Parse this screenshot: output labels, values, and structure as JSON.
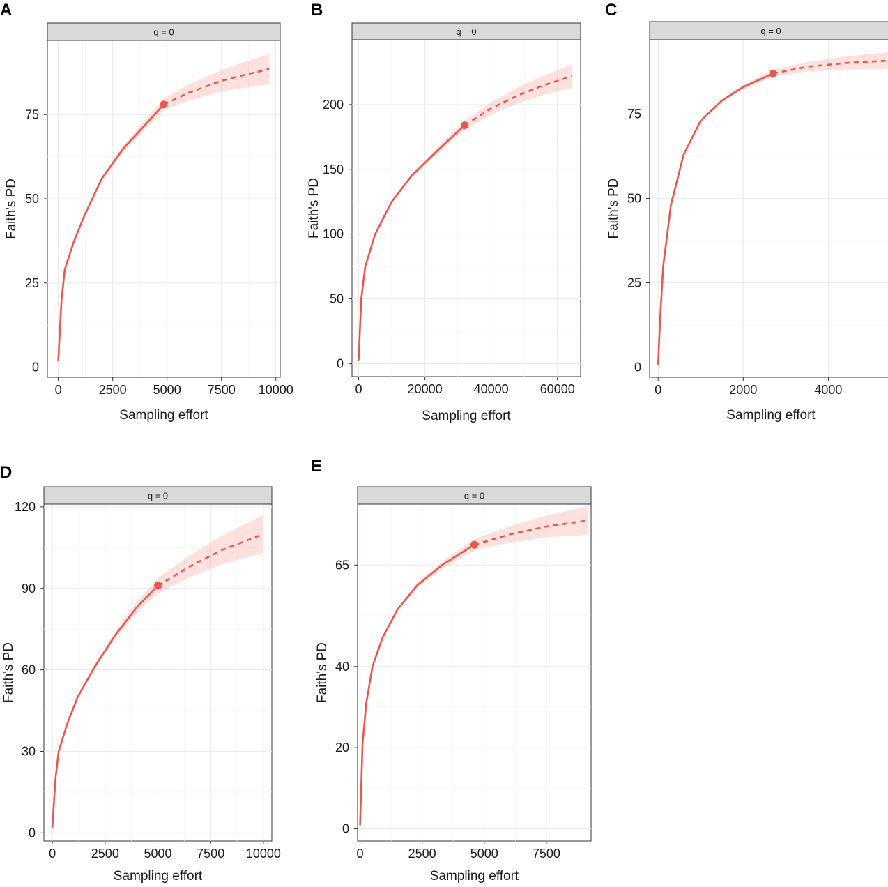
{
  "figure": {
    "series_color": "#e8574d",
    "ribbon_color": "#f8766d",
    "strip_color": "#d9d9d9"
  },
  "chart_data": [
    {
      "panel": "A",
      "type": "line",
      "strip_label": "q = 0",
      "xlabel": "Sampling effort",
      "ylabel": "Faith's PD",
      "xlim": [
        -500,
        10200
      ],
      "ylim": [
        -3,
        97
      ],
      "xticks": [
        0,
        2500,
        5000,
        7500,
        10000
      ],
      "xtick_labels": [
        "0",
        "2500",
        "5000",
        "7500",
        "10000"
      ],
      "yticks": [
        0,
        25,
        50,
        75
      ],
      "ytick_labels": [
        "0",
        "25",
        "50",
        "75"
      ],
      "reference_sample": {
        "x": 4850,
        "y": 78
      },
      "x_max": 9700,
      "curve": {
        "x": [
          0,
          150,
          300,
          700,
          1200,
          2000,
          3000,
          4000,
          4850,
          6000,
          7500,
          8500,
          9700
        ],
        "y": [
          2,
          20,
          29,
          37,
          45,
          56,
          65,
          72,
          78,
          81.5,
          85,
          86.7,
          88.5
        ]
      },
      "ci_halfwidth_at_max": 4.5
    },
    {
      "panel": "B",
      "type": "line",
      "strip_label": "q = 0",
      "xlabel": "Sampling effort",
      "ylabel": "Faith's PD",
      "xlim": [
        -2000,
        67000
      ],
      "ylim": [
        -10,
        250
      ],
      "xticks": [
        0,
        20000,
        40000,
        60000
      ],
      "xtick_labels": [
        "0",
        "20000",
        "40000",
        "60000"
      ],
      "yticks": [
        0,
        50,
        100,
        150,
        200
      ],
      "ytick_labels": [
        "0",
        "50",
        "100",
        "150",
        "200"
      ],
      "reference_sample": {
        "x": 32000,
        "y": 184
      },
      "x_max": 64500,
      "curve": {
        "x": [
          0,
          800,
          2000,
          5000,
          10000,
          16000,
          24000,
          32000,
          40000,
          48000,
          56000,
          64500
        ],
        "y": [
          3,
          50,
          75,
          100,
          125,
          145,
          165,
          184,
          197,
          207,
          215,
          222
        ]
      },
      "ci_halfwidth_at_max": 9
    },
    {
      "panel": "C",
      "type": "line",
      "strip_label": "q = 0",
      "xlabel": "Sampling effort",
      "ylabel": "Faith's PD",
      "xlim": [
        -200,
        5500
      ],
      "ylim": [
        -3,
        97
      ],
      "xticks": [
        0,
        2000,
        4000
      ],
      "xtick_labels": [
        "0",
        "2000",
        "4000"
      ],
      "yticks": [
        0,
        25,
        50,
        75
      ],
      "ytick_labels": [
        "0",
        "25",
        "50",
        "75"
      ],
      "reference_sample": {
        "x": 2700,
        "y": 87
      },
      "x_max": 5400,
      "curve": {
        "x": [
          0,
          50,
          120,
          300,
          600,
          1000,
          1500,
          2000,
          2700,
          3500,
          4500,
          5400
        ],
        "y": [
          1,
          15,
          30,
          48,
          63,
          73,
          79,
          83,
          87,
          89,
          90.2,
          90.8
        ]
      },
      "ci_halfwidth_at_max": 2.5
    },
    {
      "panel": "D",
      "type": "line",
      "strip_label": "q = 0",
      "xlabel": "Sampling effort",
      "ylabel": "Faith's PD",
      "xlim": [
        -400,
        10400
      ],
      "ylim": [
        -3,
        121
      ],
      "xticks": [
        0,
        2500,
        5000,
        7500,
        10000
      ],
      "xtick_labels": [
        "0",
        "2500",
        "5000",
        "7500",
        "10000"
      ],
      "yticks": [
        0,
        30,
        60,
        90,
        120
      ],
      "ytick_labels": [
        "0",
        "30",
        "60",
        "90",
        "120"
      ],
      "reference_sample": {
        "x": 5000,
        "y": 91
      },
      "x_max": 10000,
      "curve": {
        "x": [
          0,
          150,
          300,
          700,
          1200,
          2000,
          3000,
          4000,
          5000,
          6500,
          8000,
          9000,
          10000
        ],
        "y": [
          2,
          20,
          30,
          40,
          50,
          61,
          73,
          83,
          91,
          98,
          104,
          107,
          110
        ],
        "y_dummy": null
      },
      "ci_halfwidth_at_max": 7
    },
    {
      "panel": "E",
      "type": "line",
      "strip_label": "q = 0",
      "xlabel": "Sampling effort",
      "ylabel": "Faith's PD",
      "xlim": [
        -100,
        9300
      ],
      "ylim": [
        -3,
        80
      ],
      "xticks": [
        0,
        2500,
        5000,
        7500
      ],
      "xtick_labels": [
        "0",
        "2500",
        "5000",
        "7500"
      ],
      "yticks": [
        0,
        20,
        40,
        65
      ],
      "ytick_labels": [
        "0",
        "20",
        "40",
        "65"
      ],
      "reference_sample": {
        "x": 4600,
        "y": 70
      },
      "x_max": 9200,
      "curve": {
        "x": [
          0,
          100,
          250,
          500,
          900,
          1500,
          2300,
          3300,
          4600,
          6000,
          7500,
          9200
        ],
        "y": [
          1,
          21,
          31,
          40,
          47,
          54,
          60,
          65,
          70,
          72.5,
          74.5,
          76
        ],
        "y_dummy": null
      },
      "ci_halfwidth_at_max": 3.5
    }
  ]
}
